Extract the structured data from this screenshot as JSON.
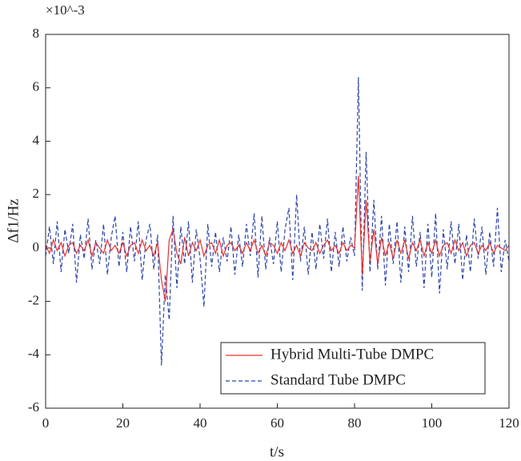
{
  "chart_data": {
    "type": "line",
    "y_multiplier": "×10^-3",
    "xlabel": "t/s",
    "ylabel": "Δf1/Hz",
    "xlim": [
      0,
      120
    ],
    "xticks": [
      0,
      20,
      40,
      60,
      80,
      100,
      120
    ],
    "ylim": [
      -6,
      8
    ],
    "yticks": [
      -6,
      -4,
      -2,
      0,
      2,
      4,
      6,
      8
    ],
    "legend": "lower right",
    "x": [
      0,
      1,
      2,
      3,
      4,
      5,
      6,
      7,
      8,
      9,
      10,
      11,
      12,
      13,
      14,
      15,
      16,
      17,
      18,
      19,
      20,
      21,
      22,
      23,
      24,
      25,
      26,
      27,
      28,
      29,
      30,
      31,
      32,
      33,
      34,
      35,
      36,
      37,
      38,
      39,
      40,
      41,
      42,
      43,
      44,
      45,
      46,
      47,
      48,
      49,
      50,
      51,
      52,
      53,
      54,
      55,
      56,
      57,
      58,
      59,
      60,
      61,
      62,
      63,
      64,
      65,
      66,
      67,
      68,
      69,
      70,
      71,
      72,
      73,
      74,
      75,
      76,
      77,
      78,
      79,
      80,
      81,
      82,
      83,
      84,
      85,
      86,
      87,
      88,
      89,
      90,
      91,
      92,
      93,
      94,
      95,
      96,
      97,
      98,
      99,
      100,
      101,
      102,
      103,
      104,
      105,
      106,
      107,
      108,
      109,
      110,
      111,
      112,
      113,
      114,
      115,
      116,
      117,
      118,
      119,
      120
    ],
    "series": [
      {
        "name": "Hybrid Multi-Tube DMPC",
        "color": "#e8312f",
        "dash": "solid",
        "values": [
          0.1,
          -0.2,
          0.3,
          -0.1,
          0.2,
          -0.3,
          0.1,
          0.2,
          -0.2,
          0.1,
          -0.1,
          0.3,
          -0.3,
          0.2,
          0.0,
          -0.2,
          0.3,
          -0.1,
          0.1,
          -0.2,
          0.2,
          -0.3,
          0.1,
          0.2,
          -0.2,
          0.3,
          -0.1,
          0.1,
          -0.3,
          0.2,
          -1.2,
          -2.0,
          0.3,
          0.7,
          -0.2,
          -0.6,
          0.4,
          -0.3,
          0.2,
          -0.1,
          0.3,
          -0.3,
          0.1,
          0.2,
          -0.2,
          0.3,
          -0.3,
          0.1,
          0.2,
          -0.1,
          0.1,
          -0.2,
          0.2,
          -0.1,
          0.3,
          -0.2,
          0.1,
          -0.3,
          0.2,
          0.1,
          -0.2,
          0.2,
          -0.1,
          0.3,
          -0.2,
          0.1,
          -0.3,
          0.2,
          0.0,
          -0.1,
          0.2,
          -0.2,
          0.1,
          0.3,
          -0.1,
          0.1,
          -0.2,
          0.2,
          -0.1,
          0.1,
          0.0,
          2.7,
          -1.0,
          1.8,
          -0.5,
          0.7,
          -0.6,
          0.4,
          -0.3,
          0.2,
          -0.4,
          0.3,
          -0.2,
          0.3,
          -0.4,
          0.2,
          -0.1,
          0.3,
          -0.3,
          0.2,
          -0.2,
          0.3,
          -0.3,
          0.1,
          0.2,
          -0.2,
          0.3,
          -0.1,
          0.2,
          -0.3,
          0.1,
          0.2,
          -0.2,
          0.1,
          -0.1,
          0.2,
          -0.2,
          0.1,
          0.0,
          -0.1,
          0.1
        ]
      },
      {
        "name": "Standard Tube DMPC",
        "color": "#2c44a8",
        "dash": "dashed",
        "values": [
          -0.3,
          0.8,
          -0.6,
          1.0,
          -0.9,
          0.7,
          -0.2,
          0.9,
          -1.3,
          0.5,
          -0.4,
          1.1,
          -0.8,
          0.3,
          -0.6,
          0.9,
          -1.0,
          0.4,
          1.2,
          -0.7,
          0.6,
          -0.9,
          0.8,
          -0.5,
          1.0,
          -1.2,
          0.3,
          0.9,
          -0.8,
          0.5,
          -4.4,
          -1.0,
          -2.7,
          1.2,
          -1.5,
          0.8,
          -0.6,
          1.0,
          -1.3,
          0.7,
          -0.4,
          -2.2,
          0.9,
          -0.7,
          0.6,
          -0.9,
          0.4,
          -0.5,
          0.8,
          -1.0,
          0.5,
          -0.7,
          0.9,
          -0.3,
          1.3,
          -1.1,
          1.2,
          -0.8,
          0.4,
          -0.6,
          1.0,
          -0.9,
          0.7,
          1.5,
          -1.2,
          2.0,
          -0.5,
          0.8,
          -1.0,
          0.6,
          -0.8,
          0.9,
          -0.4,
          1.1,
          -0.9,
          0.6,
          -0.7,
          0.8,
          -0.5,
          0.4,
          -0.3,
          6.4,
          -1.6,
          3.6,
          -0.9,
          1.8,
          -0.8,
          1.2,
          -1.4,
          0.9,
          -0.6,
          1.0,
          -1.3,
          0.8,
          -0.9,
          1.2,
          -0.7,
          0.6,
          -1.5,
          0.9,
          -1.1,
          1.3,
          -1.7,
          0.7,
          -0.8,
          1.0,
          -0.6,
          0.9,
          -1.2,
          0.5,
          -0.9,
          1.1,
          -0.4,
          0.8,
          -1.0,
          0.6,
          -0.7,
          1.5,
          -0.9,
          0.3,
          -0.5
        ]
      }
    ]
  }
}
